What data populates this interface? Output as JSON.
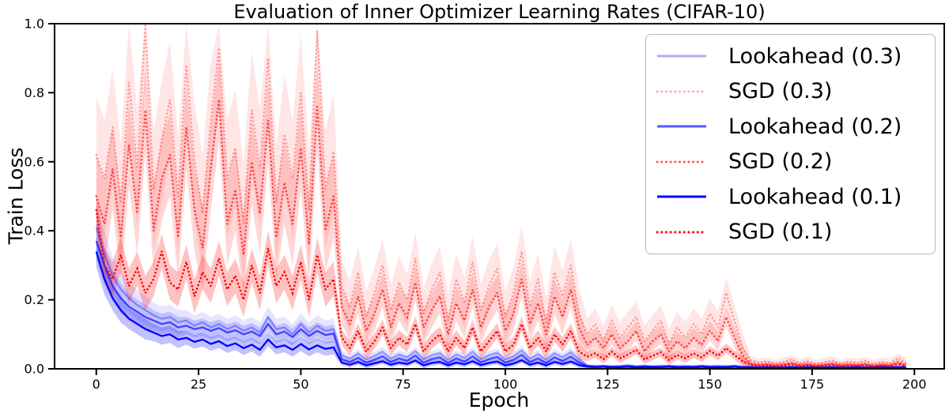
{
  "chart_data": {
    "type": "line",
    "title": "Evaluation of Inner Optimizer Learning Rates (CIFAR-10)",
    "xlabel": "Epoch",
    "ylabel": "Train Loss",
    "ylim": [
      0,
      1
    ],
    "xlim_display": [
      -10.2,
      207.3
    ],
    "x_data_range": [
      0,
      198
    ],
    "grid": false,
    "legend_position": "upper right",
    "xtick_values": [
      0,
      25,
      50,
      75,
      100,
      125,
      150,
      175,
      200
    ],
    "xtick_labels": [
      "0",
      "25",
      "50",
      "75",
      "100",
      "125",
      "150",
      "175",
      "200"
    ],
    "ytick_values": [
      0.0,
      0.2,
      0.4,
      0.6,
      0.8,
      1.0
    ],
    "ytick_labels": [
      "0.0",
      "0.2",
      "0.4",
      "0.6",
      "0.8",
      "1.0"
    ],
    "colors": {
      "blue_base": "#0000ff",
      "red_base": "#ff0000",
      "spine": "#000000",
      "legend_border": "#b5b5b5"
    },
    "lr_step_epochs": [
      60,
      120,
      160
    ],
    "epochs": [
      0,
      2,
      4,
      6,
      8,
      10,
      12,
      14,
      16,
      18,
      20,
      22,
      24,
      26,
      28,
      30,
      32,
      34,
      36,
      38,
      40,
      42,
      44,
      46,
      48,
      50,
      52,
      54,
      56,
      58,
      60,
      62,
      64,
      66,
      68,
      70,
      72,
      74,
      76,
      78,
      80,
      82,
      84,
      86,
      88,
      90,
      92,
      94,
      96,
      98,
      100,
      102,
      104,
      106,
      108,
      110,
      112,
      114,
      116,
      118,
      120,
      122,
      124,
      126,
      128,
      130,
      132,
      134,
      136,
      138,
      140,
      142,
      144,
      146,
      148,
      150,
      152,
      154,
      156,
      158,
      160,
      162,
      164,
      166,
      168,
      170,
      172,
      174,
      176,
      178,
      180,
      182,
      184,
      186,
      188,
      190,
      192,
      194,
      196,
      198
    ],
    "series": [
      {
        "label": "Lookahead (0.3)",
        "color": "rgba(0,0,255,0.33)",
        "band_color": "rgba(0,0,255,0.10)",
        "line_style": "solid",
        "mean": [
          0.41,
          0.33,
          0.27,
          0.23,
          0.205,
          0.185,
          0.17,
          0.155,
          0.145,
          0.15,
          0.135,
          0.14,
          0.125,
          0.135,
          0.12,
          0.13,
          0.115,
          0.125,
          0.11,
          0.12,
          0.105,
          0.15,
          0.115,
          0.12,
          0.1,
          0.13,
          0.105,
          0.125,
          0.11,
          0.115,
          0.04,
          0.03,
          0.045,
          0.028,
          0.038,
          0.05,
          0.03,
          0.042,
          0.034,
          0.052,
          0.028,
          0.04,
          0.046,
          0.026,
          0.042,
          0.032,
          0.05,
          0.028,
          0.04,
          0.047,
          0.027,
          0.037,
          0.054,
          0.03,
          0.043,
          0.026,
          0.046,
          0.034,
          0.049,
          0.028,
          0.01,
          0.008,
          0.009,
          0.007,
          0.008,
          0.01,
          0.007,
          0.009,
          0.007,
          0.008,
          0.009,
          0.007,
          0.008,
          0.007,
          0.009,
          0.007,
          0.008,
          0.007,
          0.009,
          0.006,
          0.006,
          0.005,
          0.006,
          0.005,
          0.005,
          0.006,
          0.005,
          0.006,
          0.005,
          0.005,
          0.006,
          0.005,
          0.005,
          0.006,
          0.005,
          0.005,
          0.006,
          0.005,
          0.006,
          0.005
        ],
        "band_width_segments": [
          [
            2,
            0.065
          ],
          [
            6,
            0.052
          ],
          [
            12,
            0.042
          ],
          [
            20,
            0.036
          ],
          [
            58,
            0.03
          ],
          [
            118,
            0.012
          ],
          [
            158,
            0.005
          ],
          [
            199,
            0.004
          ]
        ]
      },
      {
        "label": "SGD (0.3)",
        "color": "rgba(255,0,0,0.33)",
        "band_color": "rgba(255,0,0,0.10)",
        "line_style": "dotted",
        "mean": [
          0.62,
          0.55,
          0.7,
          0.48,
          0.83,
          0.58,
          1.0,
          0.52,
          0.66,
          0.78,
          0.5,
          0.88,
          0.6,
          0.45,
          0.72,
          0.93,
          0.55,
          0.64,
          0.42,
          0.75,
          0.58,
          0.9,
          0.48,
          0.68,
          0.55,
          0.8,
          0.46,
          0.98,
          0.52,
          0.63,
          0.24,
          0.18,
          0.28,
          0.15,
          0.22,
          0.3,
          0.17,
          0.25,
          0.2,
          0.32,
          0.16,
          0.23,
          0.28,
          0.14,
          0.26,
          0.19,
          0.31,
          0.17,
          0.24,
          0.29,
          0.15,
          0.22,
          0.34,
          0.18,
          0.26,
          0.13,
          0.28,
          0.21,
          0.3,
          0.16,
          0.1,
          0.13,
          0.08,
          0.14,
          0.09,
          0.12,
          0.15,
          0.08,
          0.11,
          0.14,
          0.07,
          0.12,
          0.09,
          0.13,
          0.1,
          0.16,
          0.12,
          0.22,
          0.14,
          0.06,
          0.025,
          0.018,
          0.022,
          0.015,
          0.02,
          0.028,
          0.016,
          0.022,
          0.014,
          0.019,
          0.024,
          0.015,
          0.021,
          0.017,
          0.023,
          0.014,
          0.02,
          0.016,
          0.032,
          0.018
        ],
        "band_width_segments": [
          [
            58,
            0.17
          ],
          [
            118,
            0.075
          ],
          [
            158,
            0.045
          ],
          [
            199,
            0.012
          ]
        ]
      },
      {
        "label": "Lookahead (0.2)",
        "color": "rgba(0,0,255,0.66)",
        "band_color": "rgba(0,0,255,0.16)",
        "line_style": "solid",
        "mean": [
          0.37,
          0.3,
          0.24,
          0.205,
          0.18,
          0.165,
          0.15,
          0.14,
          0.13,
          0.135,
          0.12,
          0.125,
          0.115,
          0.12,
          0.11,
          0.118,
          0.105,
          0.112,
          0.1,
          0.108,
          0.095,
          0.13,
          0.1,
          0.108,
          0.092,
          0.115,
          0.095,
          0.11,
          0.098,
          0.102,
          0.028,
          0.02,
          0.032,
          0.018,
          0.026,
          0.036,
          0.02,
          0.03,
          0.023,
          0.038,
          0.018,
          0.028,
          0.033,
          0.017,
          0.03,
          0.021,
          0.036,
          0.019,
          0.028,
          0.034,
          0.018,
          0.026,
          0.04,
          0.02,
          0.03,
          0.017,
          0.033,
          0.023,
          0.035,
          0.019,
          0.008,
          0.006,
          0.007,
          0.006,
          0.006,
          0.008,
          0.006,
          0.007,
          0.006,
          0.006,
          0.007,
          0.006,
          0.006,
          0.006,
          0.007,
          0.006,
          0.006,
          0.006,
          0.007,
          0.005,
          0.005,
          0.004,
          0.005,
          0.004,
          0.004,
          0.005,
          0.004,
          0.005,
          0.004,
          0.004,
          0.005,
          0.004,
          0.004,
          0.005,
          0.004,
          0.004,
          0.005,
          0.004,
          0.005,
          0.004
        ],
        "band_width_segments": [
          [
            2,
            0.055
          ],
          [
            6,
            0.044
          ],
          [
            12,
            0.036
          ],
          [
            20,
            0.03
          ],
          [
            58,
            0.025
          ],
          [
            118,
            0.01
          ],
          [
            158,
            0.004
          ],
          [
            199,
            0.003
          ]
        ]
      },
      {
        "label": "SGD (0.2)",
        "color": "rgba(255,0,0,0.66)",
        "band_color": "rgba(255,0,0,0.16)",
        "line_style": "dotted",
        "mean": [
          0.5,
          0.42,
          0.58,
          0.38,
          0.65,
          0.45,
          0.75,
          0.4,
          0.55,
          0.62,
          0.38,
          0.7,
          0.46,
          0.35,
          0.58,
          0.78,
          0.42,
          0.52,
          0.33,
          0.6,
          0.45,
          0.72,
          0.38,
          0.54,
          0.42,
          0.64,
          0.36,
          0.76,
          0.4,
          0.5,
          0.18,
          0.13,
          0.21,
          0.11,
          0.16,
          0.23,
          0.12,
          0.19,
          0.15,
          0.25,
          0.12,
          0.17,
          0.21,
          0.1,
          0.19,
          0.14,
          0.23,
          0.12,
          0.18,
          0.22,
          0.11,
          0.16,
          0.26,
          0.13,
          0.19,
          0.1,
          0.21,
          0.15,
          0.23,
          0.12,
          0.07,
          0.09,
          0.06,
          0.1,
          0.06,
          0.08,
          0.11,
          0.05,
          0.08,
          0.1,
          0.05,
          0.08,
          0.06,
          0.09,
          0.07,
          0.11,
          0.08,
          0.15,
          0.09,
          0.04,
          0.015,
          0.012,
          0.014,
          0.01,
          0.013,
          0.017,
          0.011,
          0.014,
          0.009,
          0.012,
          0.015,
          0.01,
          0.013,
          0.011,
          0.014,
          0.009,
          0.012,
          0.01,
          0.02,
          0.01
        ],
        "band_width_segments": [
          [
            58,
            0.12
          ],
          [
            118,
            0.05
          ],
          [
            158,
            0.028
          ],
          [
            199,
            0.008
          ]
        ]
      },
      {
        "label": "Lookahead (0.1)",
        "color": "rgba(0,0,255,1)",
        "band_color": "rgba(0,0,255,0.24)",
        "line_style": "solid",
        "mean": [
          0.34,
          0.26,
          0.205,
          0.17,
          0.145,
          0.13,
          0.115,
          0.105,
          0.095,
          0.1,
          0.085,
          0.09,
          0.078,
          0.085,
          0.072,
          0.08,
          0.066,
          0.074,
          0.06,
          0.07,
          0.055,
          0.085,
          0.062,
          0.068,
          0.055,
          0.072,
          0.056,
          0.068,
          0.058,
          0.062,
          0.018,
          0.012,
          0.02,
          0.01,
          0.016,
          0.022,
          0.012,
          0.018,
          0.014,
          0.024,
          0.01,
          0.017,
          0.02,
          0.01,
          0.018,
          0.013,
          0.022,
          0.011,
          0.017,
          0.021,
          0.01,
          0.015,
          0.025,
          0.012,
          0.018,
          0.01,
          0.02,
          0.014,
          0.021,
          0.011,
          0.006,
          0.005,
          0.006,
          0.004,
          0.005,
          0.006,
          0.004,
          0.005,
          0.004,
          0.005,
          0.006,
          0.004,
          0.005,
          0.004,
          0.006,
          0.004,
          0.005,
          0.004,
          0.006,
          0.004,
          0.004,
          0.003,
          0.004,
          0.003,
          0.003,
          0.004,
          0.003,
          0.004,
          0.003,
          0.003,
          0.004,
          0.003,
          0.003,
          0.004,
          0.003,
          0.003,
          0.004,
          0.003,
          0.004,
          0.003
        ],
        "band_width_segments": [
          [
            2,
            0.045
          ],
          [
            6,
            0.036
          ],
          [
            12,
            0.03
          ],
          [
            20,
            0.025
          ],
          [
            58,
            0.02
          ],
          [
            118,
            0.008
          ],
          [
            158,
            0.003
          ],
          [
            199,
            0.0025
          ]
        ]
      },
      {
        "label": "SGD (0.1)",
        "color": "rgba(255,0,0,1)",
        "band_color": "rgba(255,0,0,0.24)",
        "line_style": "dotted",
        "mean": [
          0.46,
          0.3,
          0.26,
          0.33,
          0.24,
          0.29,
          0.22,
          0.26,
          0.34,
          0.25,
          0.23,
          0.31,
          0.21,
          0.28,
          0.24,
          0.32,
          0.23,
          0.27,
          0.2,
          0.3,
          0.22,
          0.35,
          0.24,
          0.28,
          0.22,
          0.31,
          0.2,
          0.33,
          0.23,
          0.26,
          0.09,
          0.06,
          0.11,
          0.05,
          0.08,
          0.12,
          0.06,
          0.09,
          0.07,
          0.13,
          0.05,
          0.08,
          0.1,
          0.05,
          0.09,
          0.06,
          0.12,
          0.05,
          0.08,
          0.11,
          0.05,
          0.07,
          0.13,
          0.06,
          0.09,
          0.05,
          0.1,
          0.07,
          0.11,
          0.05,
          0.035,
          0.045,
          0.028,
          0.05,
          0.03,
          0.042,
          0.055,
          0.027,
          0.038,
          0.048,
          0.025,
          0.04,
          0.03,
          0.045,
          0.033,
          0.052,
          0.038,
          0.06,
          0.04,
          0.022,
          0.012,
          0.009,
          0.011,
          0.008,
          0.01,
          0.013,
          0.008,
          0.011,
          0.007,
          0.01,
          0.012,
          0.008,
          0.01,
          0.009,
          0.011,
          0.007,
          0.01,
          0.008,
          0.014,
          0.008
        ],
        "band_width_segments": [
          [
            58,
            0.05
          ],
          [
            118,
            0.022
          ],
          [
            158,
            0.013
          ],
          [
            199,
            0.005
          ]
        ]
      }
    ]
  }
}
